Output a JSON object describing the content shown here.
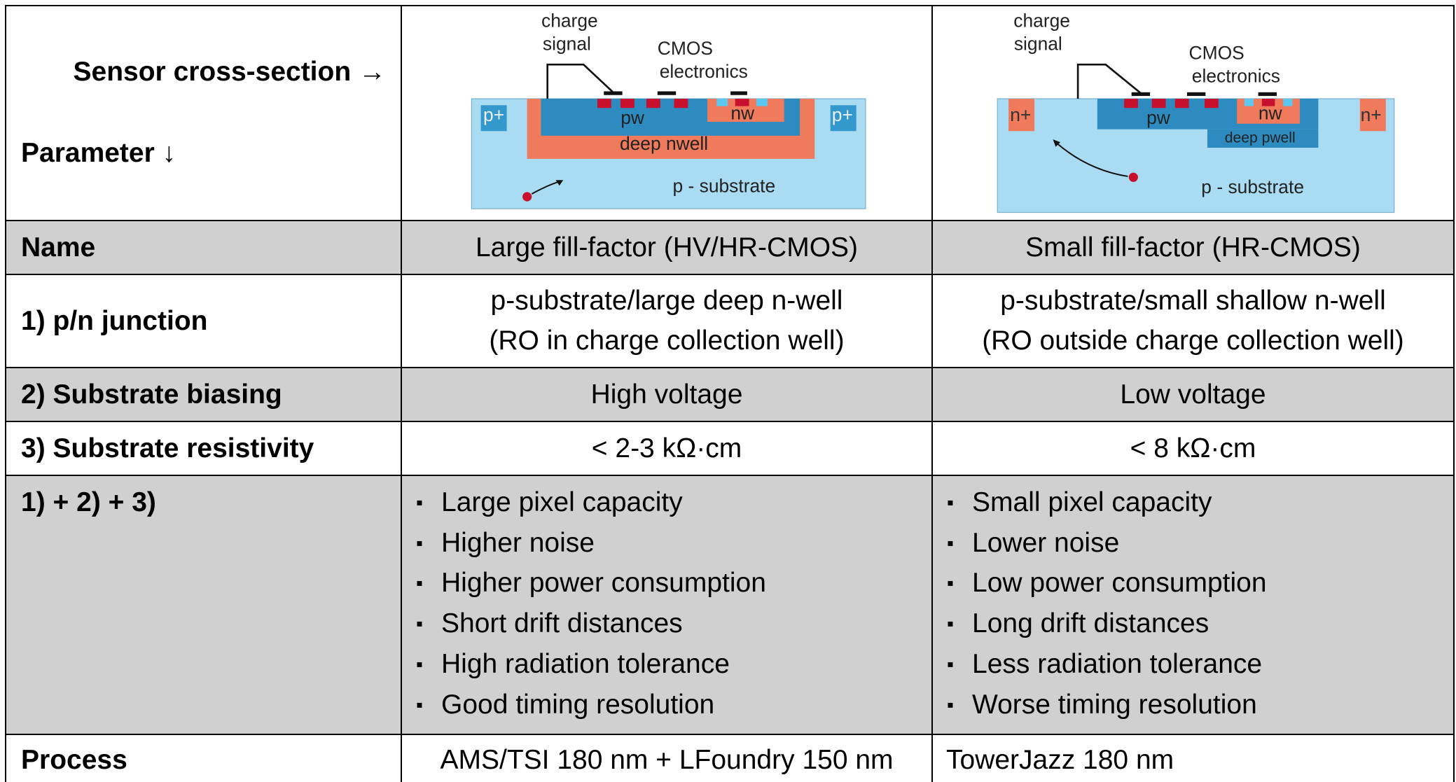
{
  "header": {
    "corner_top": "Sensor cross-section →",
    "corner_bottom": "Parameter ↓"
  },
  "diagrams": [
    {
      "charge": "charge",
      "signal": "signal",
      "cmos": "CMOS",
      "electronics": "electronics",
      "pw": "pw",
      "nw": "nw",
      "deep_well": "deep nwell",
      "substrate": "p - substrate",
      "contact_left": "p+",
      "contact_right": "p+"
    },
    {
      "charge": "charge",
      "signal": "signal",
      "cmos": "CMOS",
      "electronics": "electronics",
      "pw": "pw",
      "nw": "nw",
      "deep_well": "deep pwell",
      "substrate": "p - substrate",
      "contact_left": "n+",
      "contact_right": "n+"
    }
  ],
  "table": {
    "rows": [
      [
        "Name",
        "Large fill-factor (HV/HR-CMOS)",
        "Small fill-factor (HR-CMOS)"
      ],
      [
        "1) p/n junction",
        [
          "p-substrate/large deep n-well",
          "(RO in charge collection well)"
        ],
        [
          "p-substrate/small shallow n-well",
          "(RO outside charge collection well)"
        ]
      ],
      [
        "2) Substrate biasing",
        "High voltage",
        "Low voltage"
      ],
      [
        "3) Substrate resistivity",
        "< 2-3 kΩ·cm",
        "< 8 kΩ·cm"
      ],
      [
        "1) + 2) + 3)",
        [
          "Large pixel capacity",
          "Higher noise",
          "Higher power consumption",
          "Short drift distances",
          "High radiation tolerance",
          "Good timing resolution"
        ],
        [
          "Small pixel capacity",
          "Lower noise",
          "Low power consumption",
          "Long drift distances",
          "Less radiation tolerance",
          "Worse timing resolution"
        ]
      ],
      [
        "Process",
        "AMS/TSI 180 nm + LFoundry 150 nm",
        "TowerJazz 180 nm"
      ]
    ]
  }
}
